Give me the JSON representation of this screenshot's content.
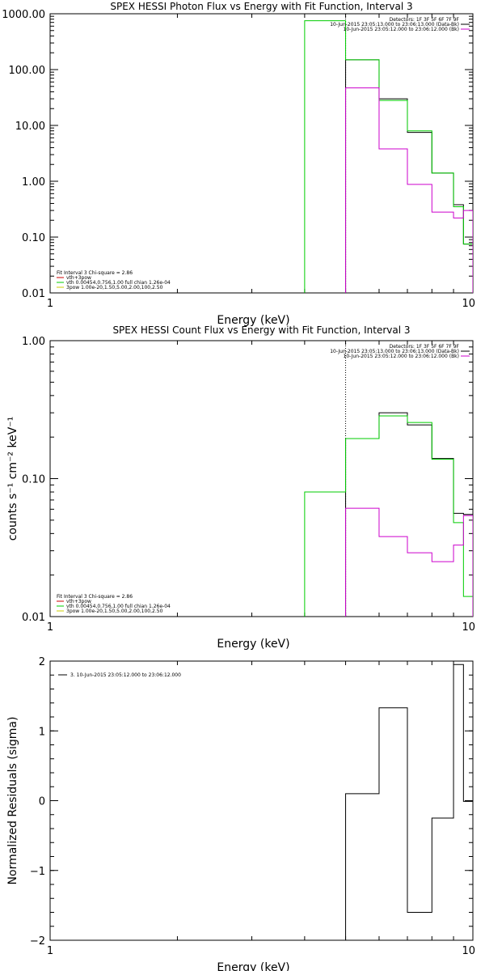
{
  "chart_data": [
    {
      "type": "line",
      "title": "SPEX HESSI Photon Flux vs Energy with Fit Function, Interval 3",
      "xlabel": "Energy (keV)",
      "ylabel": "",
      "xscale": "log",
      "yscale": "log",
      "xlim": [
        1,
        10
      ],
      "ylim": [
        0.01,
        1000
      ],
      "xticks": [
        {
          "value": 1,
          "label": "1"
        },
        {
          "value": 10,
          "label": "10"
        }
      ],
      "yticks": [
        {
          "value": 0.01,
          "label": "0.01"
        },
        {
          "value": 0.1,
          "label": "0.10"
        },
        {
          "value": 1,
          "label": "1.00"
        },
        {
          "value": 10,
          "label": "10.00"
        },
        {
          "value": 100,
          "label": "100.00"
        },
        {
          "value": 1000,
          "label": "1000.00"
        }
      ],
      "legend_topright": [
        {
          "text": "Detectors: 1F 3F 5F 6F 7F 9F",
          "color": ""
        },
        {
          "text": "10-Jun-2015 23:05:13.000 to 23:06:13.000 (Data-Bk)",
          "color": "#000000"
        },
        {
          "text": "10-Jun-2015 23:05:12.000 to 23:06:12.000 (Bk)",
          "color": "#cc00cc"
        }
      ],
      "legend_bottomleft": [
        {
          "text": "Fit Interval 3   Chi-square = 2.86",
          "color": ""
        },
        {
          "text": "vth+3pow",
          "color": "#cc0000"
        },
        {
          "text": "vth 0.00454,0.756,1.00  full chian 1.26e-04",
          "color": "#00cc00"
        },
        {
          "text": "3pow 1.00e-20,1.50,5.00,2.00,100,2.50",
          "color": "#cccc00"
        }
      ],
      "dotted_vline_x": 5,
      "series": [
        {
          "key": "data",
          "color": "#000000",
          "edges": [
            5,
            6,
            7,
            8,
            9,
            9.5,
            10
          ],
          "values": [
            150,
            30,
            7.5,
            1.4,
            0.38,
            0.075
          ]
        },
        {
          "key": "vth",
          "color": "#00cc00",
          "edges": [
            4,
            5,
            6,
            7,
            8,
            9,
            9.5,
            10
          ],
          "values": [
            750,
            150,
            28,
            8,
            1.4,
            0.35,
            0.075
          ]
        },
        {
          "key": "bk",
          "color": "#cc00cc",
          "edges": [
            5,
            6,
            7,
            8,
            9,
            9.5,
            10
          ],
          "values": [
            47,
            3.8,
            0.88,
            0.28,
            0.22,
            0.3
          ]
        }
      ]
    },
    {
      "type": "line",
      "title": "SPEX HESSI Count Flux vs Energy with Fit Function, Interval 3",
      "xlabel": "Energy (keV)",
      "ylabel": "counts s⁻¹ cm⁻² keV⁻¹",
      "xscale": "log",
      "yscale": "log",
      "xlim": [
        1,
        10
      ],
      "ylim": [
        0.01,
        1
      ],
      "xticks": [
        {
          "value": 1,
          "label": "1"
        },
        {
          "value": 10,
          "label": "10"
        }
      ],
      "yticks": [
        {
          "value": 0.01,
          "label": "0.01"
        },
        {
          "value": 0.1,
          "label": "0.10"
        },
        {
          "value": 1,
          "label": "1.00"
        }
      ],
      "legend_topright": [
        {
          "text": "Detectors: 1F 3F 5F 6F 7F 9F",
          "color": ""
        },
        {
          "text": "10-Jun-2015 23:05:13.000 to 23:06:13.000 (Data-Bk)",
          "color": "#000000"
        },
        {
          "text": "10-Jun-2015 23:05:12.000 to 23:06:12.000 (Bk)",
          "color": "#cc00cc"
        }
      ],
      "legend_bottomleft": [
        {
          "text": "Fit Interval 3   Chi-square = 2.86",
          "color": ""
        },
        {
          "text": "vth+3pow",
          "color": "#cc0000"
        },
        {
          "text": "vth 0.00454,0.756,1.00  full chian 1.26e-04",
          "color": "#00cc00"
        },
        {
          "text": "3pow 1.00e-20,1.50,5.00,2.00,100,2.50",
          "color": "#cccc00"
        }
      ],
      "dotted_vline_x": 5,
      "series": [
        {
          "key": "data",
          "color": "#000000",
          "edges": [
            5,
            6,
            7,
            8,
            9,
            9.5,
            10
          ],
          "values": [
            0.195,
            0.3,
            0.245,
            0.14,
            0.056,
            0.055
          ]
        },
        {
          "key": "vth",
          "color": "#00cc00",
          "edges": [
            4,
            5,
            6,
            7,
            8,
            9,
            9.5,
            10
          ],
          "values": [
            0.08,
            0.195,
            0.285,
            0.255,
            0.138,
            0.048,
            0.014
          ]
        },
        {
          "key": "bk",
          "color": "#cc00cc",
          "edges": [
            5,
            6,
            7,
            8,
            9,
            9.5,
            10
          ],
          "values": [
            0.061,
            0.038,
            0.029,
            0.025,
            0.033,
            0.054
          ]
        }
      ]
    },
    {
      "type": "line",
      "title": "",
      "xlabel": "Energy (keV)",
      "ylabel": "Normalized Residuals (sigma)",
      "xscale": "log",
      "yscale": "linear",
      "xlim": [
        1,
        10
      ],
      "ylim": [
        -2,
        2
      ],
      "xticks": [
        {
          "value": 1,
          "label": "1"
        },
        {
          "value": 10,
          "label": "10"
        }
      ],
      "yticks": [
        {
          "value": -2,
          "label": "−2"
        },
        {
          "value": -1,
          "label": "−1"
        },
        {
          "value": 0,
          "label": "0"
        },
        {
          "value": 1,
          "label": "1"
        },
        {
          "value": 2,
          "label": "2"
        }
      ],
      "legend_topright": [],
      "legend_bottomleft": [],
      "legend_topleft": [
        {
          "text": "3. 10-Jun-2015 23:05:12.000 to 23:06:12.000",
          "color": "#000000"
        }
      ],
      "series": [
        {
          "key": "residuals",
          "color": "#000000",
          "edges": [
            5,
            6,
            7,
            8,
            9,
            9.5,
            10
          ],
          "values": [
            0.1,
            1.33,
            -1.6,
            -0.25,
            1.95,
            -0.01
          ]
        }
      ]
    }
  ]
}
